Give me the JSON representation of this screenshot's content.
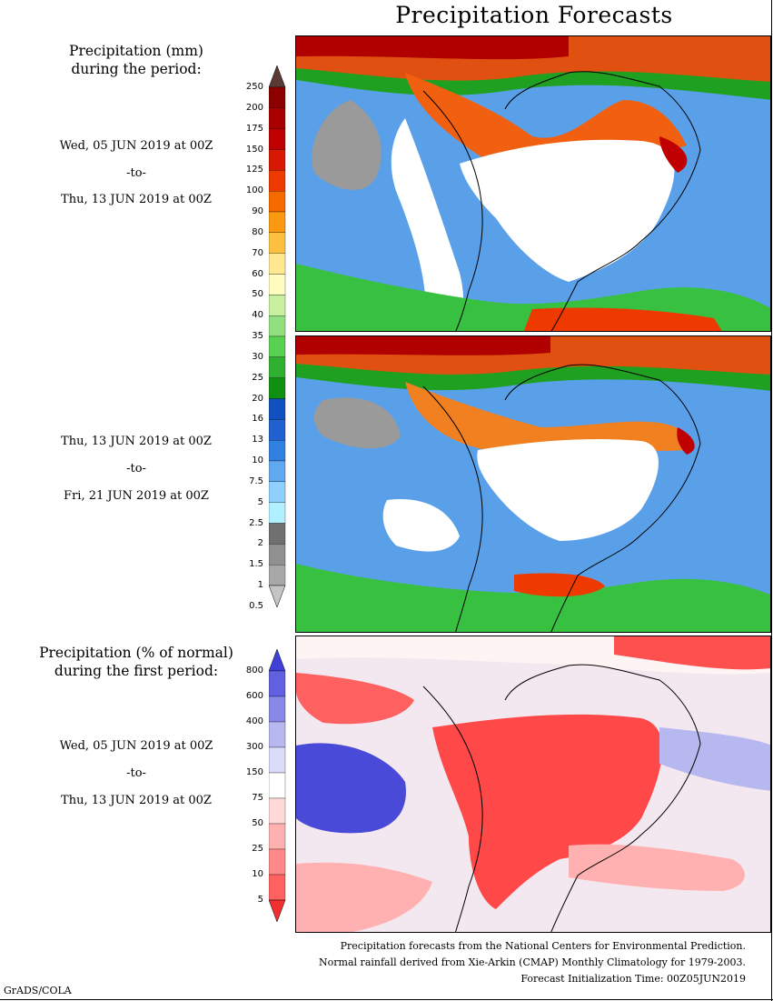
{
  "page_title": "Precipitation Forecasts",
  "section1": {
    "heading_line1": "Precipitation (mm)",
    "heading_line2": "during the period:"
  },
  "period1": {
    "start": "Wed, 05 JUN 2019 at 00Z",
    "sep": "-to-",
    "end": "Thu, 13 JUN 2019 at 00Z"
  },
  "period2": {
    "start": "Thu, 13 JUN 2019 at 00Z",
    "sep": "-to-",
    "end": "Fri, 21 JUN 2019 at 00Z"
  },
  "section2": {
    "heading_line1": "Precipitation (% of normal)",
    "heading_line2": "during the first period:"
  },
  "period3": {
    "start": "Wed, 05 JUN 2019 at 00Z",
    "sep": "-to-",
    "end": "Thu, 13 JUN 2019 at 00Z"
  },
  "mm_scale": {
    "labels": [
      "250",
      "200",
      "175",
      "150",
      "125",
      "100",
      "90",
      "80",
      "70",
      "60",
      "50",
      "40",
      "35",
      "30",
      "25",
      "20",
      "16",
      "13",
      "10",
      "7.5",
      "5",
      "2.5",
      "2",
      "1.5",
      "1",
      "0.5"
    ],
    "colors": [
      "#5a3a32",
      "#8c0000",
      "#a80000",
      "#c00000",
      "#d81800",
      "#ee3a00",
      "#f66a00",
      "#fb9a10",
      "#fdc040",
      "#fee890",
      "#fffcc0",
      "#c8f0a0",
      "#90e080",
      "#58d050",
      "#30b030",
      "#109010",
      "#1050c0",
      "#2060d0",
      "#3080e0",
      "#60a8f0",
      "#90d0ff",
      "#b0f0ff",
      "#707070",
      "#909090",
      "#a8a8a8",
      "#c4c4c4"
    ]
  },
  "pct_scale": {
    "labels": [
      "800",
      "600",
      "400",
      "300",
      "150",
      "75",
      "50",
      "25",
      "10",
      "5"
    ],
    "colors": [
      "#4040d8",
      "#6060e0",
      "#8888e8",
      "#b8b8f0",
      "#dcdcfa",
      "#ffffff",
      "#ffd8d8",
      "#ffb0b0",
      "#ff8888",
      "#ff6060",
      "#f03030"
    ]
  },
  "footer": {
    "line1": "Precipitation forecasts from the National Centers for Environmental Prediction.",
    "line2": "Normal rainfall derived from Xie-Arkin (CMAP) Monthly Climatology for 1979-2003.",
    "line3": "Forecast Initialization Time: 00Z05JUN2019"
  },
  "credit": "GrADS/COLA"
}
